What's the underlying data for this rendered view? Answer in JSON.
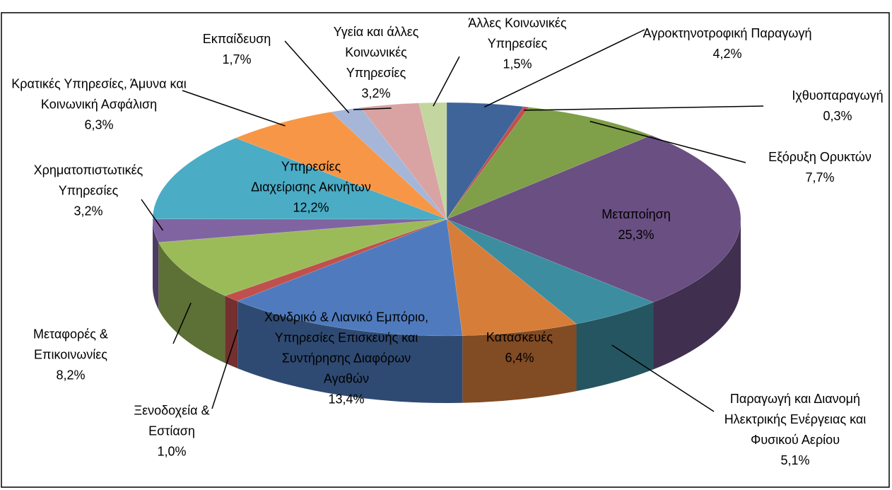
{
  "chart_data": {
    "type": "pie3d",
    "categories": [
      "Αγροκτηνοτροφική Παραγωγή",
      "Ιχθυοπαραγωγή",
      "Εξόρυξη Ορυκτών",
      "Μεταποίηση",
      "Παραγωγή και Διανομή Ηλεκτρικής Ενέργειας και Φυσικού Αερίου",
      "Κατασκευές",
      "Χονδρικό & Λιανικό Εμπόριο, Υπηρεσίες Επισκευής και Συντήρησης Διαφόρων Αγαθών",
      "Ξενοδοχεία & Εστίαση",
      "Μεταφορές & Επικοινωνίες",
      "Χρηματοπιστωτικές Υπηρεσίες",
      "Υπηρεσίες Διαχείρισης Ακινήτων",
      "Κρατικές Υπηρεσίες, Άμυνα και Κοινωνική Ασφάλιση",
      "Εκπαίδευση",
      "Υγεία και άλλες Κοινωνικές Υπηρεσίες",
      "Άλλες Κοινωνικές Υπηρεσίες"
    ],
    "values": [
      4.2,
      0.3,
      7.7,
      25.3,
      5.1,
      6.4,
      13.4,
      1.0,
      8.2,
      3.2,
      12.2,
      6.3,
      1.7,
      3.2,
      1.5
    ],
    "value_labels": [
      "4,2%",
      "0,3%",
      "7,7%",
      "25,3%",
      "5,1%",
      "6,4%",
      "13,4%",
      "1,0%",
      "8,2%",
      "3,2%",
      "12,2%",
      "6,3%",
      "1,7%",
      "3,2%",
      "1,5%"
    ],
    "colors": [
      "#3F6499",
      "#C0504D",
      "#7F9F48",
      "#6A4F83",
      "#3C8DA0",
      "#D77D3A",
      "#4F7BBE",
      "#C0504D",
      "#9BBB59",
      "#8064A2",
      "#4BACC6",
      "#F79646",
      "#A5B6D9",
      "#D9A3A3",
      "#C3D6A0"
    ]
  }
}
